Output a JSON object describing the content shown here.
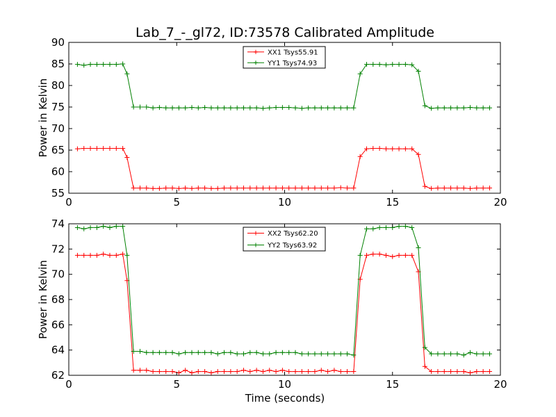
{
  "figure": {
    "title": "Lab_7_-_gl72, ID:73578 Calibrated Amplitude",
    "xlabel": "Time (seconds)"
  },
  "chart_data": [
    {
      "type": "line",
      "ylabel": "Power in Kelvin",
      "xlim": [
        0,
        20
      ],
      "ylim": [
        55,
        90
      ],
      "xticks": [
        "0",
        "5",
        "10",
        "15",
        "20"
      ],
      "yticks": [
        "55",
        "60",
        "65",
        "70",
        "75",
        "80",
        "85",
        "90"
      ],
      "grid": false,
      "legend_position": "top-center",
      "x": [
        0.4,
        0.7,
        1.0,
        1.3,
        1.6,
        1.9,
        2.2,
        2.5,
        2.7,
        3.0,
        3.3,
        3.6,
        3.9,
        4.2,
        4.5,
        4.8,
        5.1,
        5.4,
        5.7,
        6.0,
        6.3,
        6.6,
        6.9,
        7.2,
        7.5,
        7.8,
        8.1,
        8.4,
        8.7,
        9.0,
        9.3,
        9.6,
        9.9,
        10.2,
        10.5,
        10.8,
        11.1,
        11.4,
        11.7,
        12.0,
        12.3,
        12.6,
        12.9,
        13.2,
        13.5,
        13.8,
        14.1,
        14.4,
        14.7,
        15.0,
        15.3,
        15.6,
        15.9,
        16.2,
        16.5,
        16.8,
        17.1,
        17.4,
        17.7,
        18.0,
        18.3,
        18.6,
        18.9,
        19.2,
        19.5
      ],
      "series": [
        {
          "name": "XX1 Tsys55.91",
          "color": "#ff0000",
          "values": [
            65.3,
            65.4,
            65.4,
            65.4,
            65.4,
            65.4,
            65.4,
            65.4,
            63.3,
            56.2,
            56.2,
            56.2,
            56.1,
            56.1,
            56.2,
            56.2,
            56.1,
            56.2,
            56.1,
            56.2,
            56.2,
            56.1,
            56.1,
            56.2,
            56.2,
            56.2,
            56.2,
            56.2,
            56.2,
            56.2,
            56.2,
            56.2,
            56.2,
            56.2,
            56.2,
            56.2,
            56.2,
            56.2,
            56.2,
            56.2,
            56.2,
            56.3,
            56.2,
            56.2,
            63.5,
            65.3,
            65.4,
            65.4,
            65.3,
            65.3,
            65.3,
            65.3,
            65.3,
            64.0,
            56.6,
            56.1,
            56.2,
            56.2,
            56.2,
            56.2,
            56.2,
            56.1,
            56.2,
            56.2,
            56.2
          ]
        },
        {
          "name": "YY1 Tsys74.93",
          "color": "#008000",
          "values": [
            84.9,
            84.7,
            84.9,
            84.9,
            84.9,
            84.9,
            84.9,
            85.0,
            82.7,
            75.0,
            75.0,
            75.0,
            74.8,
            74.9,
            74.8,
            74.8,
            74.8,
            74.8,
            74.9,
            74.8,
            74.9,
            74.8,
            74.8,
            74.8,
            74.8,
            74.8,
            74.8,
            74.8,
            74.8,
            74.7,
            74.8,
            74.9,
            74.9,
            74.9,
            74.8,
            74.7,
            74.8,
            74.8,
            74.8,
            74.8,
            74.8,
            74.8,
            74.8,
            74.8,
            82.7,
            84.9,
            84.9,
            84.9,
            84.8,
            84.9,
            84.9,
            84.9,
            84.8,
            83.3,
            75.3,
            74.7,
            74.8,
            74.8,
            74.8,
            74.8,
            74.8,
            74.9,
            74.8,
            74.8,
            74.8
          ]
        }
      ]
    },
    {
      "type": "line",
      "ylabel": "Power in Kelvin",
      "xlim": [
        0,
        20
      ],
      "ylim": [
        62,
        74
      ],
      "xticks": [
        "0",
        "5",
        "10",
        "15",
        "20"
      ],
      "yticks": [
        "62",
        "64",
        "66",
        "68",
        "70",
        "72",
        "74"
      ],
      "grid": false,
      "legend_position": "top-center",
      "x": [
        0.4,
        0.7,
        1.0,
        1.3,
        1.6,
        1.9,
        2.2,
        2.5,
        2.7,
        3.0,
        3.3,
        3.6,
        3.9,
        4.2,
        4.5,
        4.8,
        5.1,
        5.4,
        5.7,
        6.0,
        6.3,
        6.6,
        6.9,
        7.2,
        7.5,
        7.8,
        8.1,
        8.4,
        8.7,
        9.0,
        9.3,
        9.6,
        9.9,
        10.2,
        10.5,
        10.8,
        11.1,
        11.4,
        11.7,
        12.0,
        12.3,
        12.6,
        12.9,
        13.2,
        13.5,
        13.8,
        14.1,
        14.4,
        14.7,
        15.0,
        15.3,
        15.6,
        15.9,
        16.2,
        16.5,
        16.8,
        17.1,
        17.4,
        17.7,
        18.0,
        18.3,
        18.6,
        18.9,
        19.2,
        19.5
      ],
      "series": [
        {
          "name": "XX2 Tsys62.20",
          "color": "#ff0000",
          "values": [
            71.5,
            71.5,
            71.5,
            71.5,
            71.6,
            71.5,
            71.5,
            71.6,
            69.5,
            62.4,
            62.4,
            62.4,
            62.3,
            62.3,
            62.3,
            62.3,
            62.2,
            62.4,
            62.2,
            62.3,
            62.3,
            62.2,
            62.3,
            62.3,
            62.3,
            62.3,
            62.4,
            62.3,
            62.4,
            62.3,
            62.4,
            62.3,
            62.4,
            62.3,
            62.3,
            62.3,
            62.3,
            62.3,
            62.4,
            62.3,
            62.4,
            62.3,
            62.3,
            62.3,
            69.6,
            71.5,
            71.6,
            71.6,
            71.5,
            71.4,
            71.5,
            71.5,
            71.5,
            70.2,
            62.7,
            62.3,
            62.3,
            62.3,
            62.3,
            62.3,
            62.3,
            62.2,
            62.3,
            62.3,
            62.3
          ]
        },
        {
          "name": "YY2 Tsys63.92",
          "color": "#008000",
          "values": [
            73.7,
            73.6,
            73.7,
            73.7,
            73.8,
            73.7,
            73.8,
            73.8,
            71.5,
            63.9,
            63.9,
            63.8,
            63.8,
            63.8,
            63.8,
            63.8,
            63.7,
            63.8,
            63.8,
            63.8,
            63.8,
            63.8,
            63.7,
            63.8,
            63.8,
            63.7,
            63.7,
            63.8,
            63.8,
            63.7,
            63.7,
            63.8,
            63.8,
            63.8,
            63.8,
            63.7,
            63.7,
            63.7,
            63.7,
            63.7,
            63.7,
            63.7,
            63.7,
            63.6,
            71.5,
            73.6,
            73.6,
            73.7,
            73.7,
            73.7,
            73.8,
            73.8,
            73.7,
            72.1,
            64.2,
            63.7,
            63.7,
            63.7,
            63.7,
            63.7,
            63.6,
            63.8,
            63.7,
            63.7,
            63.7
          ]
        }
      ]
    }
  ]
}
